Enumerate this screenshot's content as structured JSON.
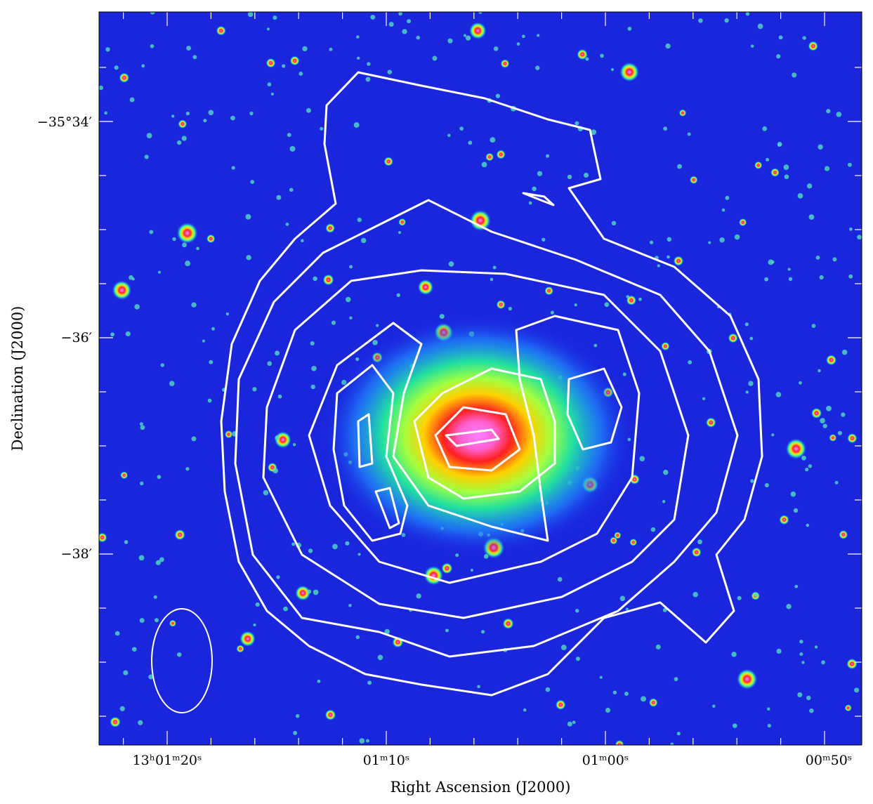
{
  "figure": {
    "x_label": "Right Ascension (J2000)",
    "y_label": "Declination (J2000)",
    "x_ticks": [
      "13ʰ01ᵐ20ˢ",
      "01ᵐ10ˢ",
      "01ᵐ00ˢ",
      "00ᵐ50ˢ"
    ],
    "y_ticks": [
      "−35°34′",
      "−36′",
      "−38′"
    ]
  }
}
